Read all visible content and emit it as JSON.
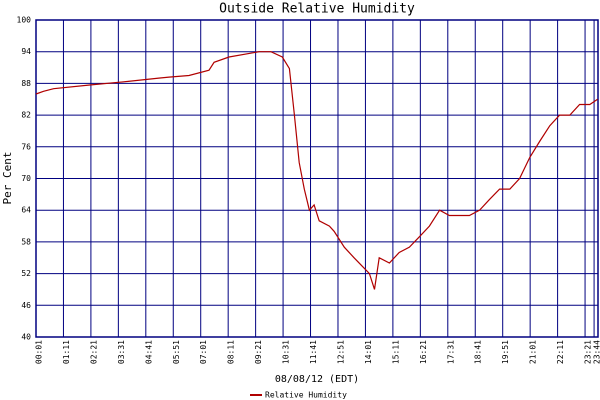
{
  "chart_data": {
    "type": "line",
    "title": "Outside Relative Humidity",
    "x_label": "08/08/12 (EDT)",
    "y_label": "Per Cent",
    "x": [
      1,
      20,
      46,
      138,
      225,
      314,
      340,
      391,
      442,
      455,
      493,
      570,
      600,
      629,
      647,
      660,
      672,
      685,
      698,
      710,
      723,
      749,
      761,
      787,
      812,
      838,
      851,
      864,
      876,
      902,
      927,
      953,
      979,
      1004,
      1030,
      1055,
      1081,
      1106,
      1132,
      1157,
      1183,
      1209,
      1234,
      1260,
      1285,
      1311,
      1336,
      1362,
      1387,
      1413,
      1433
    ],
    "series": [
      {
        "name": "Relative Humidity",
        "color": "#b00000",
        "values": [
          86,
          86.5,
          87,
          87.7,
          88.3,
          89,
          89.2,
          89.5,
          90.5,
          92,
          93,
          94,
          94,
          93,
          90.8,
          82,
          73,
          68,
          64,
          65,
          62,
          61,
          60,
          57,
          55,
          53,
          52,
          49,
          55,
          54,
          56,
          57,
          59,
          61,
          64,
          63,
          63,
          63,
          64,
          66,
          68,
          68,
          70,
          74,
          77,
          80,
          82,
          82,
          84,
          84,
          85
        ]
      }
    ],
    "xlim": [
      1,
      1434
    ],
    "xticks": [
      {
        "value": 1,
        "label": "00:01"
      },
      {
        "value": 71,
        "label": "01:11"
      },
      {
        "value": 141,
        "label": "02:21"
      },
      {
        "value": 211,
        "label": "03:31"
      },
      {
        "value": 281,
        "label": "04:41"
      },
      {
        "value": 351,
        "label": "05:51"
      },
      {
        "value": 421,
        "label": "07:01"
      },
      {
        "value": 491,
        "label": "08:11"
      },
      {
        "value": 561,
        "label": "09:21"
      },
      {
        "value": 631,
        "label": "10:31"
      },
      {
        "value": 701,
        "label": "11:41"
      },
      {
        "value": 771,
        "label": "12:51"
      },
      {
        "value": 841,
        "label": "14:01"
      },
      {
        "value": 911,
        "label": "15:11"
      },
      {
        "value": 981,
        "label": "16:21"
      },
      {
        "value": 1051,
        "label": "17:31"
      },
      {
        "value": 1121,
        "label": "18:41"
      },
      {
        "value": 1191,
        "label": "19:51"
      },
      {
        "value": 1261,
        "label": "21:01"
      },
      {
        "value": 1331,
        "label": "22:11"
      },
      {
        "value": 1401,
        "label": "23:21"
      },
      {
        "value": 1424,
        "label": "23:44"
      }
    ],
    "ylim": [
      40,
      100
    ],
    "yticks": [
      40,
      46,
      52,
      58,
      64,
      70,
      76,
      82,
      88,
      94,
      100
    ],
    "grid": true,
    "grid_color": "#000080",
    "legend": "bottom"
  }
}
